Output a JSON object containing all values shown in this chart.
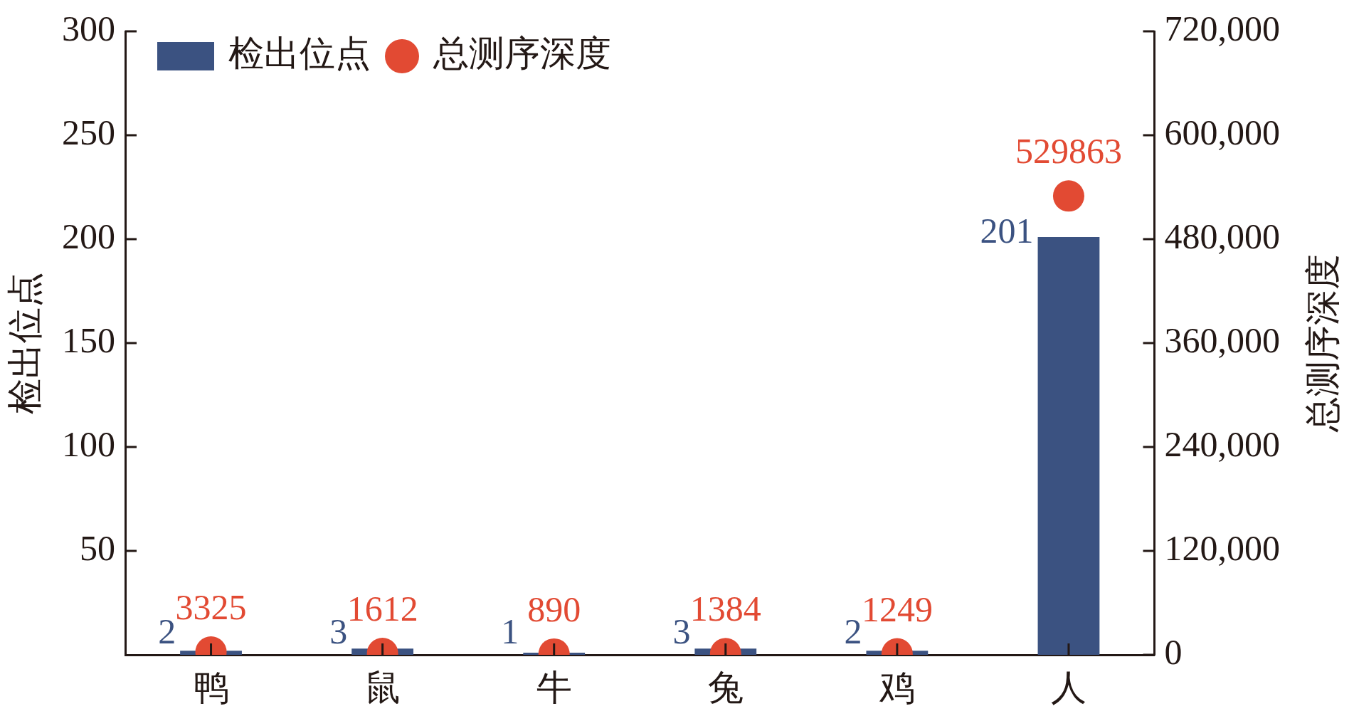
{
  "chart_data": {
    "type": "bar",
    "categories": [
      "鸭",
      "鼠",
      "牛",
      "兔",
      "鸡",
      "人"
    ],
    "ylabel": "检出位点",
    "y2label": "总测序深度",
    "ylim": [
      0,
      300
    ],
    "yticks": [
      50,
      100,
      150,
      200,
      250,
      300
    ],
    "y2lim": [
      0,
      720000
    ],
    "y2ticks": [
      0,
      {
        "value": 120000,
        "label": "120,000"
      },
      {
        "value": 240000,
        "label": "240,000"
      },
      {
        "value": 360000,
        "label": "360,000"
      },
      {
        "value": 480000,
        "label": "480,000"
      },
      {
        "value": 600000,
        "label": "600,000"
      },
      {
        "value": 720000,
        "label": "720,000"
      }
    ],
    "series": [
      {
        "name": "检出位点",
        "color": "#3b5281",
        "values": [
          2,
          3,
          1,
          3,
          2,
          201
        ]
      },
      {
        "name": "总测序深度",
        "type": "scatter",
        "axis": "y2",
        "color": "#e24a33",
        "values": [
          3325,
          1612,
          890,
          1384,
          1249,
          529863
        ]
      }
    ],
    "marker": "circle",
    "data_labels": true,
    "legend": "top left",
    "grid": false
  }
}
